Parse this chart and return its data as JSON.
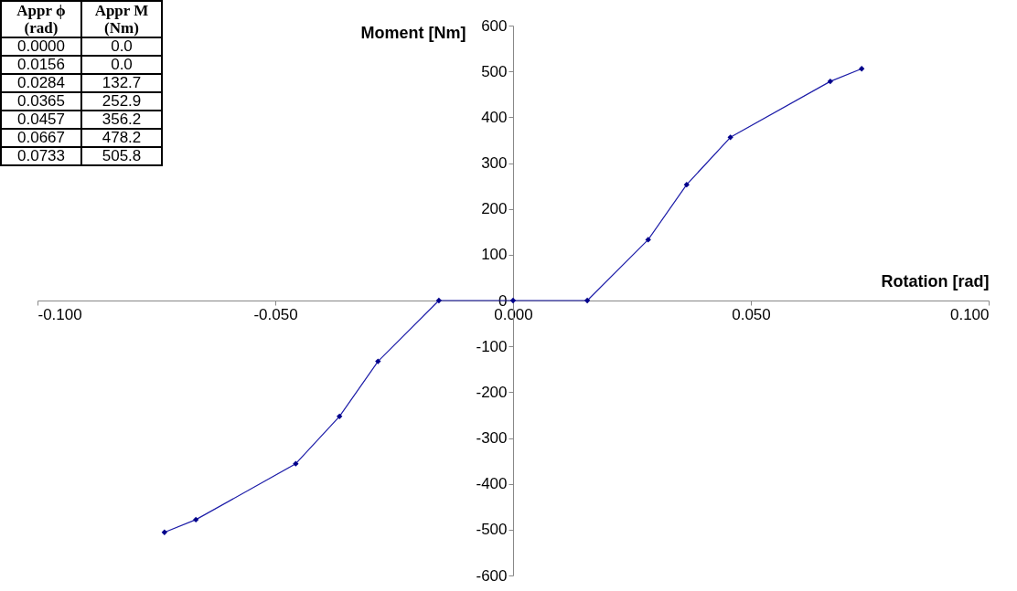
{
  "chart_data": {
    "type": "line",
    "xlabel": "Rotation [rad]",
    "ylabel": "Moment [Nm]",
    "x": [
      -0.0733,
      -0.0667,
      -0.0457,
      -0.0365,
      -0.0284,
      -0.0156,
      0,
      0.0156,
      0.0284,
      0.0365,
      0.0457,
      0.0667,
      0.0733
    ],
    "series": [
      {
        "color": "#1c1ca8",
        "values": [
          -505.8,
          -478.2,
          -356.2,
          -252.9,
          -132.7,
          0,
          0,
          0,
          132.7,
          252.9,
          356.2,
          478.2,
          505.8
        ]
      }
    ],
    "xlim": [
      -0.1,
      0.1
    ],
    "ylim": [
      -600,
      600
    ],
    "xticks": [
      {
        "value": -0.1,
        "label": "-0.100"
      },
      {
        "value": -0.05,
        "label": "-0.050"
      },
      {
        "value": 0,
        "label": "0.000"
      },
      {
        "value": 0.05,
        "label": "0.050"
      },
      {
        "value": 0.1,
        "label": "0.100"
      }
    ],
    "yticks": [
      -600,
      -500,
      -400,
      -300,
      -200,
      -100,
      0,
      100,
      200,
      300,
      400,
      500,
      600
    ],
    "marker": "diamond",
    "line_style": "solid",
    "grid": false,
    "annotations": [
      "Appr ϕ (rad)",
      "Appr M (Nm)",
      "0.0000",
      "0.0",
      "0.0156",
      "0.0",
      "0.0284",
      "132.7",
      "0.0365",
      "252.9",
      "0.0457",
      "356.2",
      "0.0667",
      "478.2",
      "0.0733",
      "505.8"
    ]
  }
}
